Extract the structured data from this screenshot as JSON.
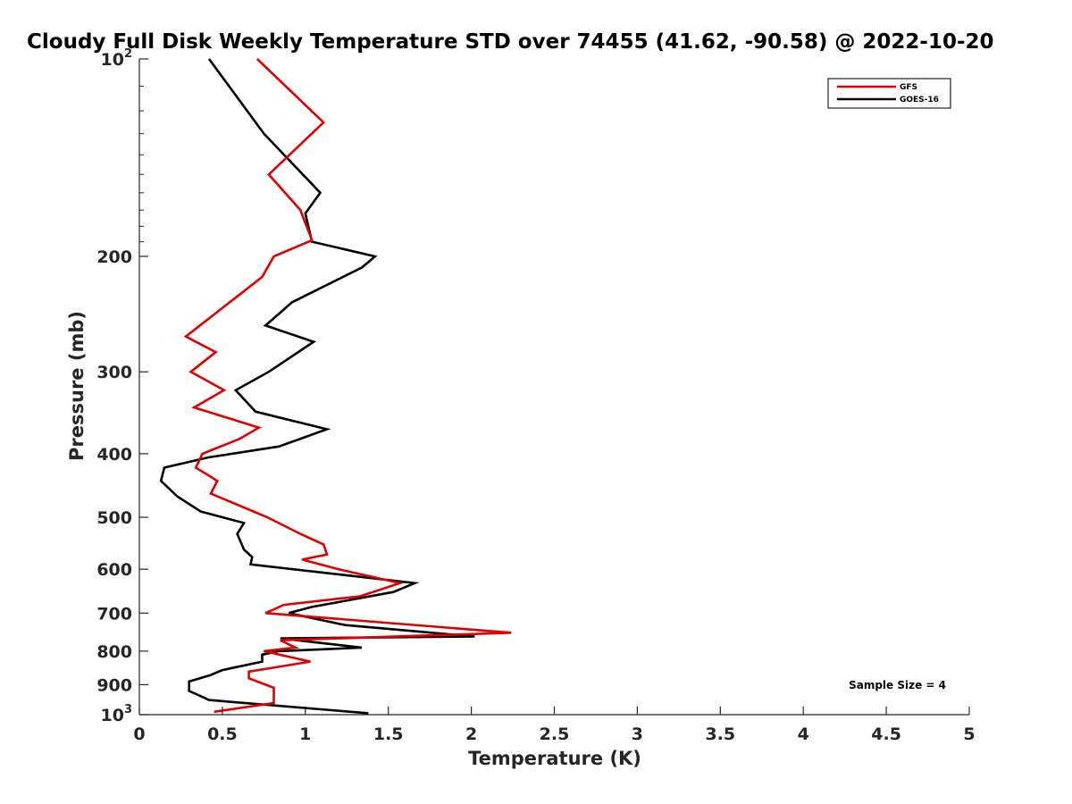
{
  "chart_data": {
    "type": "line",
    "title": "Cloudy Full Disk Weekly Temperature STD over 74455 (41.62, -90.58) @ 2022-10-20",
    "xlabel": "Temperature (K)",
    "ylabel": "Pressure (mb)",
    "xlim": [
      0,
      5
    ],
    "ylim": [
      1000,
      100
    ],
    "y_scale": "log",
    "grid": false,
    "legend_position": "top-right",
    "x_ticks": [
      "0",
      "0.5",
      "1",
      "1.5",
      "2",
      "2.5",
      "3",
      "3.5",
      "4",
      "4.5",
      "5"
    ],
    "y_ticks": [
      {
        "value": 100,
        "base": "10",
        "exp": "2",
        "label": ""
      },
      {
        "value": 200,
        "label": "200"
      },
      {
        "value": 300,
        "label": "300"
      },
      {
        "value": 400,
        "label": "400"
      },
      {
        "value": 500,
        "label": "500"
      },
      {
        "value": 600,
        "label": "600"
      },
      {
        "value": 700,
        "label": "700"
      },
      {
        "value": 800,
        "label": "800"
      },
      {
        "value": 900,
        "label": "900"
      },
      {
        "value": 1000,
        "base": "10",
        "exp": "3",
        "label": ""
      }
    ],
    "annotation": "Sample Size = 4",
    "series": [
      {
        "name": "GFS",
        "color": "#e00000",
        "points": [
          [
            0.71,
            100
          ],
          [
            1.11,
            125
          ],
          [
            0.78,
            150
          ],
          [
            0.97,
            170
          ],
          [
            1.04,
            189
          ],
          [
            0.81,
            200
          ],
          [
            0.74,
            215
          ],
          [
            0.28,
            265
          ],
          [
            0.46,
            280
          ],
          [
            0.31,
            300
          ],
          [
            0.51,
            320
          ],
          [
            0.33,
            340
          ],
          [
            0.72,
            365
          ],
          [
            0.6,
            380
          ],
          [
            0.38,
            400
          ],
          [
            0.34,
            420
          ],
          [
            0.47,
            440
          ],
          [
            0.43,
            460
          ],
          [
            0.77,
            500
          ],
          [
            0.97,
            530
          ],
          [
            1.11,
            550
          ],
          [
            1.13,
            570
          ],
          [
            0.98,
            580
          ],
          [
            1.2,
            600
          ],
          [
            1.57,
            630
          ],
          [
            1.33,
            660
          ],
          [
            0.87,
            680
          ],
          [
            0.76,
            700
          ],
          [
            2.24,
            750
          ],
          [
            0.85,
            770
          ],
          [
            0.94,
            790
          ],
          [
            0.75,
            800
          ],
          [
            1.03,
            830
          ],
          [
            0.66,
            860
          ],
          [
            0.66,
            880
          ],
          [
            0.81,
            910
          ],
          [
            0.81,
            960
          ],
          [
            0.45,
            990
          ]
        ]
      },
      {
        "name": "GOES-16",
        "color": "#000000",
        "points": [
          [
            0.42,
            100
          ],
          [
            0.75,
            130
          ],
          [
            1.09,
            160
          ],
          [
            1.0,
            172
          ],
          [
            1.04,
            190
          ],
          [
            1.42,
            200
          ],
          [
            1.34,
            208
          ],
          [
            0.92,
            235
          ],
          [
            0.76,
            255
          ],
          [
            1.05,
            270
          ],
          [
            0.78,
            300
          ],
          [
            0.58,
            320
          ],
          [
            0.7,
            345
          ],
          [
            1.13,
            367
          ],
          [
            0.84,
            390
          ],
          [
            0.42,
            405
          ],
          [
            0.15,
            420
          ],
          [
            0.13,
            440
          ],
          [
            0.23,
            465
          ],
          [
            0.37,
            490
          ],
          [
            0.63,
            510
          ],
          [
            0.59,
            530
          ],
          [
            0.63,
            560
          ],
          [
            0.68,
            575
          ],
          [
            0.67,
            590
          ],
          [
            1.66,
            630
          ],
          [
            1.53,
            650
          ],
          [
            1.04,
            685
          ],
          [
            0.9,
            700
          ],
          [
            1.24,
            730
          ],
          [
            2.02,
            760
          ],
          [
            0.85,
            765
          ],
          [
            1.34,
            790
          ],
          [
            0.84,
            800
          ],
          [
            0.74,
            810
          ],
          [
            0.74,
            830
          ],
          [
            0.5,
            855
          ],
          [
            0.43,
            870
          ],
          [
            0.3,
            890
          ],
          [
            0.3,
            920
          ],
          [
            0.42,
            950
          ],
          [
            1.38,
            995
          ]
        ]
      }
    ]
  }
}
